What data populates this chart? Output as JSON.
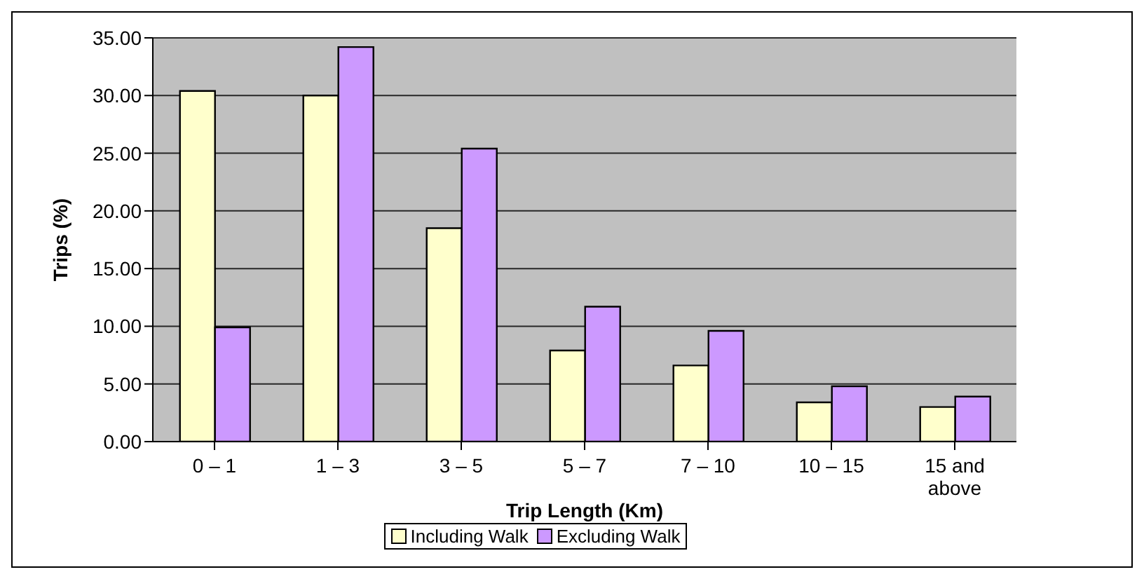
{
  "chart_data": {
    "type": "bar",
    "xlabel": "Trip Length (Km)",
    "ylabel": "Trips (%)",
    "categories": [
      "0 – 1",
      "1 – 3",
      "3 – 5",
      "5 – 7",
      "7 – 10",
      "10 – 15",
      "15 and above"
    ],
    "series": [
      {
        "name": "Including Walk",
        "color": "#ffffcc",
        "values": [
          30.4,
          30.0,
          18.5,
          7.9,
          6.6,
          3.4,
          3.0
        ]
      },
      {
        "name": "Excluding Walk",
        "color": "#cc99ff",
        "values": [
          9.9,
          34.2,
          25.4,
          11.7,
          9.6,
          4.8,
          3.9
        ]
      }
    ],
    "ylim": [
      0,
      35
    ],
    "yticks": [
      {
        "value": 0,
        "label": "0.00"
      },
      {
        "value": 5,
        "label": "5.00"
      },
      {
        "value": 10,
        "label": "10.00"
      },
      {
        "value": 15,
        "label": "15.00"
      },
      {
        "value": 20,
        "label": "20.00"
      },
      {
        "value": 25,
        "label": "25.00"
      },
      {
        "value": 30,
        "label": "30.00"
      },
      {
        "value": 35,
        "label": "35.00"
      }
    ],
    "grid": "y",
    "legend": "bottom"
  }
}
